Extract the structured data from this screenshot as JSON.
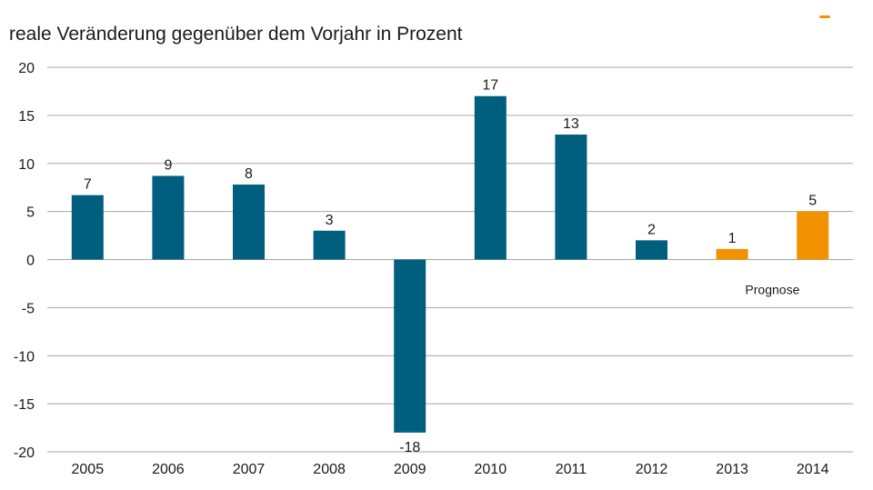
{
  "chart_data": {
    "type": "bar",
    "title": "reale Veränderung gegenüber dem Vorjahr in Prozent",
    "xlabel": "",
    "ylabel": "",
    "categories": [
      "2005",
      "2006",
      "2007",
      "2008",
      "2009",
      "2010",
      "2011",
      "2012",
      "2013",
      "2014"
    ],
    "values": [
      6.7,
      8.7,
      7.8,
      3.0,
      -18.0,
      17.0,
      13.0,
      2.0,
      1.1,
      5.0
    ],
    "data_labels": [
      "7",
      "9",
      "8",
      "3",
      "-18",
      "17",
      "13",
      "2",
      "1",
      "5"
    ],
    "forecast": [
      false,
      false,
      false,
      false,
      false,
      false,
      false,
      false,
      true,
      true
    ],
    "ylim": [
      -20,
      20
    ],
    "yticks": [
      "20",
      "15",
      "10",
      "5",
      "0",
      "-5",
      "-10",
      "-15",
      "-20"
    ],
    "ytick_values": [
      20,
      15,
      10,
      5,
      0,
      -5,
      -10,
      -15,
      -20
    ],
    "grid": true,
    "annotation": "Prognose",
    "colors": {
      "actual": "#005f7f",
      "forecast": "#f39200",
      "grid": "#a6a6a6"
    }
  }
}
